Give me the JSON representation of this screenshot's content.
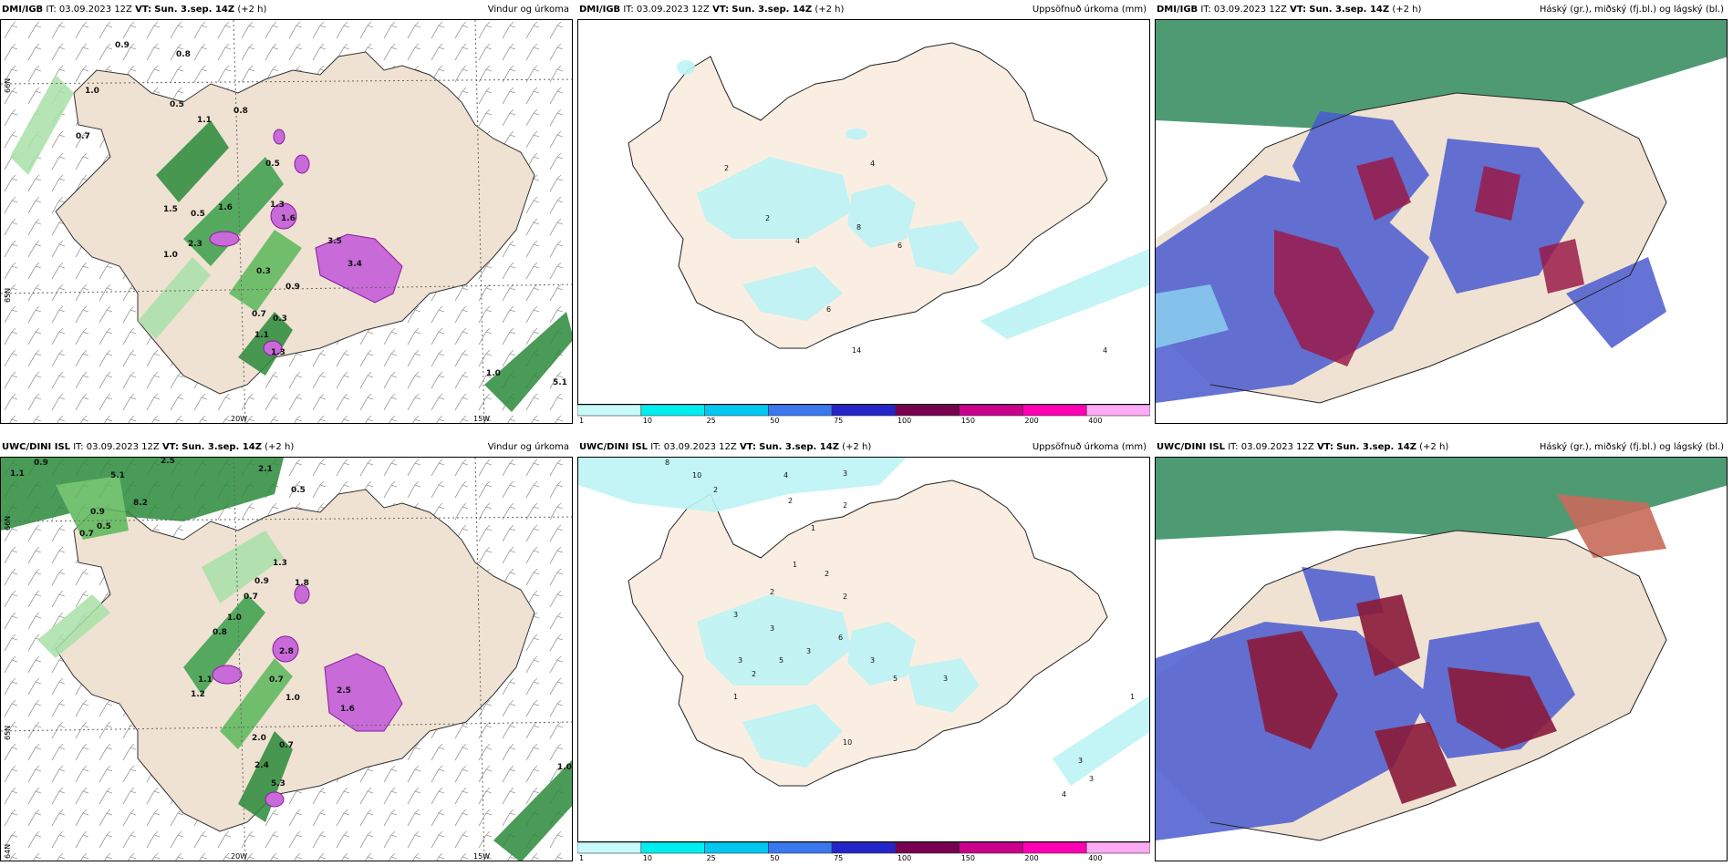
{
  "rows": [
    {
      "model": "DMI/IGB",
      "it": "IT: 03.09.2023 12Z",
      "vt_label": "VT:",
      "vt": "Sun. 3.sep. 14Z",
      "lead": "(+2 h)",
      "panels": {
        "wind": {
          "field": "Vindur og úrkoma"
        },
        "accum": {
          "field": "Uppsöfnuð úrkoma (mm)"
        },
        "cloud": {
          "field": "Háský (gr.), miðský (fj.bl.) og lágský (bl.)"
        }
      }
    },
    {
      "model": "UWC/DINI ISL",
      "it": "IT: 03.09.2023 12Z",
      "vt_label": "VT:",
      "vt": "Sun. 3.sep. 14Z",
      "lead": "(+2 h)",
      "panels": {
        "wind": {
          "field": "Vindur og úrkoma"
        },
        "accum": {
          "field": "Uppsöfnuð úrkoma (mm)"
        },
        "cloud": {
          "field": "Háský (gr.), miðský (fj.bl.) og lágský (bl.)"
        }
      }
    }
  ],
  "axis_labels": {
    "lon_20w": "20W",
    "lon_15w": "15W",
    "lat_66n": "66N",
    "lat_65n": "65N",
    "lat_64n": "64N"
  },
  "legend": {
    "colors": [
      "#c8fafa",
      "#00eef0",
      "#00c8f0",
      "#3a78f0",
      "#2424c8",
      "#780050",
      "#c8008c",
      "#ff00b4",
      "#ffaaf5"
    ],
    "ticks": [
      "1",
      "10",
      "25",
      "50",
      "75",
      "100",
      "150",
      "200",
      "400"
    ]
  },
  "values_top_wind": [
    "0.9",
    "0.8",
    "1.0",
    "0.5",
    "0.7",
    "1.1",
    "0.8",
    "1.6",
    "0.5",
    "1.5",
    "0.5",
    "1.3",
    "1.6",
    "1.0",
    "3.5",
    "3.4",
    "2.3",
    "0.3",
    "0.9",
    "0.7",
    "0.3",
    "1.1",
    "1.3",
    "1.0",
    "5.1"
  ],
  "values_top_accum": [
    "2",
    "4",
    "2",
    "4",
    "8",
    "6",
    "6",
    "14",
    "4"
  ],
  "values_bottom_wind": [
    "1.1",
    "0.9",
    "2.5",
    "5.1",
    "2.1",
    "8.2",
    "0.5",
    "0.9",
    "0.5",
    "0.7",
    "1.3",
    "0.9",
    "1.8",
    "0.7",
    "1.0",
    "0.8",
    "2.8",
    "1.1",
    "1.2",
    "0.7",
    "1.0",
    "2.5",
    "1.6",
    "2.0",
    "0.7",
    "2.4",
    "5.3",
    "1.0"
  ],
  "values_bottom_accum": [
    "8",
    "10",
    "2",
    "4",
    "3",
    "2",
    "2",
    "1",
    "1",
    "2",
    "2",
    "2",
    "3",
    "3",
    "6",
    "3",
    "5",
    "2",
    "3",
    "3",
    "5",
    "3",
    "1",
    "10",
    "1",
    "3",
    "3",
    "4"
  ]
}
